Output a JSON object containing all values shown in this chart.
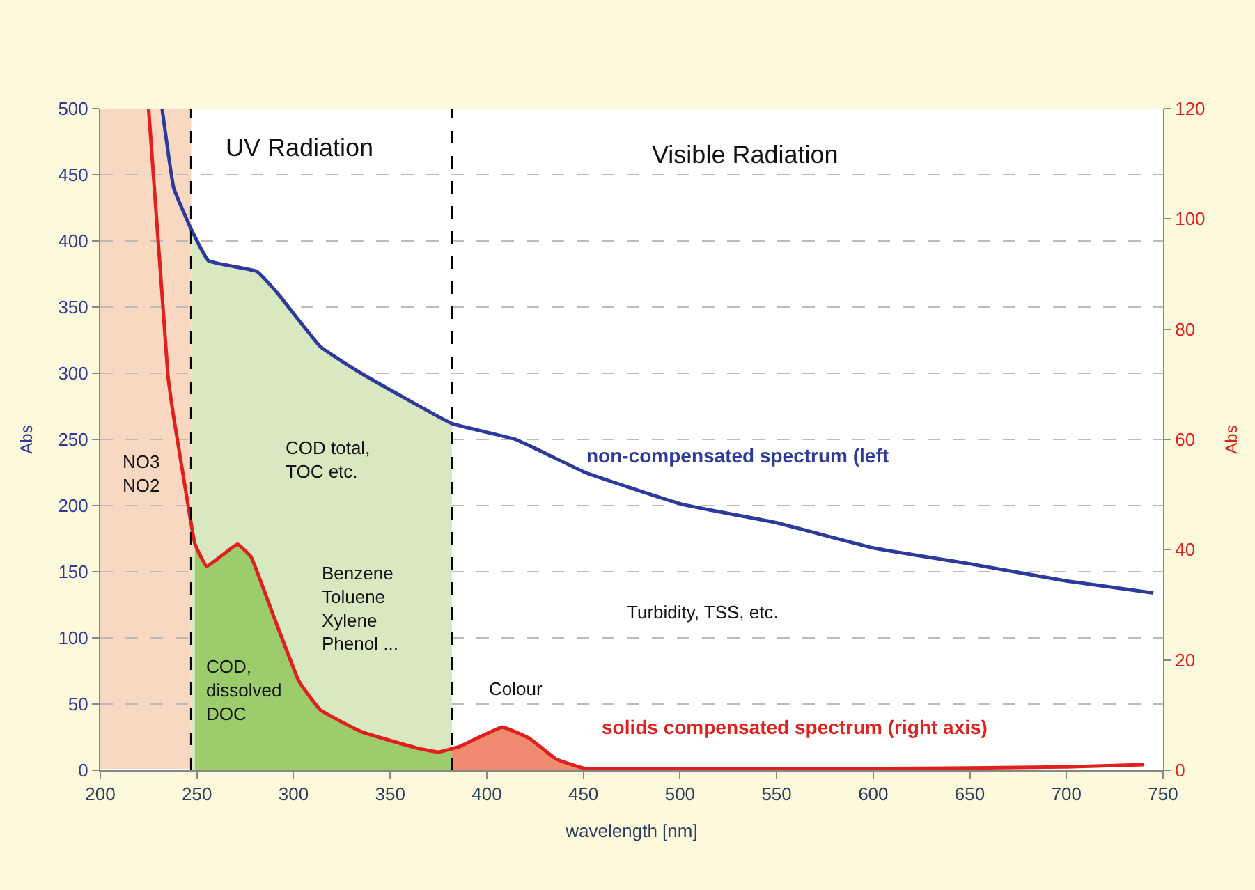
{
  "chart_data": {
    "type": "line",
    "xlabel": "wavelength [nm]",
    "ylabel": "Abs",
    "y2label": "Abs",
    "xlim": [
      200,
      750
    ],
    "xticks": [
      200,
      250,
      300,
      350,
      400,
      450,
      500,
      550,
      600,
      650,
      700,
      750
    ],
    "ylim": [
      0,
      500
    ],
    "yticks": [
      0,
      50,
      100,
      150,
      200,
      250,
      300,
      350,
      400,
      450,
      500
    ],
    "y2lim": [
      0,
      120
    ],
    "y2ticks": [
      0,
      20,
      40,
      60,
      80,
      100,
      120
    ],
    "grid": "y",
    "legend": false,
    "marker": "none",
    "series": [
      {
        "type": "area",
        "color": "#d8e8c0",
        "x": [
          247,
          256,
          281,
          292,
          314,
          335,
          382
        ],
        "values": [
          409,
          385,
          377,
          360,
          320,
          300,
          262
        ]
      },
      {
        "type": "area",
        "axis": "y2",
        "color": "#9ccc6c",
        "x": [
          249,
          255,
          262,
          271,
          278,
          289,
          303,
          314,
          335,
          364,
          375,
          382
        ],
        "values": [
          41,
          37,
          38.7,
          41,
          38.7,
          28.6,
          16,
          10.9,
          7,
          4,
          3.3,
          3.8
        ]
      },
      {
        "type": "area",
        "axis": "y2",
        "color": "#f08a70",
        "x": [
          382,
          386,
          408,
          422,
          436,
          451
        ],
        "values": [
          3.8,
          4.3,
          7.8,
          5.8,
          2,
          0.3
        ]
      },
      {
        "name": "non-compensated spectrum (left",
        "color": "#2b3a9c",
        "x": [
          232,
          238,
          247,
          256,
          281,
          292,
          314,
          335,
          382,
          415,
          451,
          501,
          550,
          600,
          650,
          700,
          745
        ],
        "values": [
          500,
          440,
          409,
          385,
          377,
          360,
          320,
          300,
          262,
          250,
          225,
          201,
          187,
          168,
          156,
          143,
          134
        ]
      },
      {
        "name": "solids compensated spectrum (right axis)",
        "axis": "y2",
        "color": "#e0201c",
        "x": [
          225,
          235,
          238,
          245,
          249,
          255,
          262,
          271,
          278,
          289,
          303,
          314,
          335,
          364,
          375,
          386,
          408,
          422,
          436,
          451,
          500,
          550,
          600,
          650,
          700,
          740
        ],
        "values": [
          120,
          71.6,
          64,
          49,
          41,
          37,
          38.7,
          41,
          38.7,
          28.6,
          16,
          10.9,
          7,
          4,
          3.3,
          4.3,
          7.8,
          5.8,
          2,
          0.3,
          0.3,
          0.3,
          0.3,
          0.4,
          0.6,
          1
        ]
      }
    ],
    "bands": [
      {
        "axis": "x",
        "from": 200,
        "to": 247,
        "color": "#f8d8c0"
      }
    ],
    "ref_lines": [
      {
        "axis": "x",
        "value": 247,
        "line_style": "dashed",
        "color": "#000000"
      },
      {
        "axis": "x",
        "value": 382,
        "line_style": "dashed",
        "color": "#000000"
      }
    ],
    "annotations": [
      "UV Radiation",
      "Visible Radiation",
      "NO3\nNO2",
      "COD total,\nTOC etc.",
      "Benzene\nToluene\nXylene\nPhenol ...",
      "COD,\ndissolved\nDOC",
      "Colour",
      "Turbidity, TSS, etc."
    ]
  }
}
